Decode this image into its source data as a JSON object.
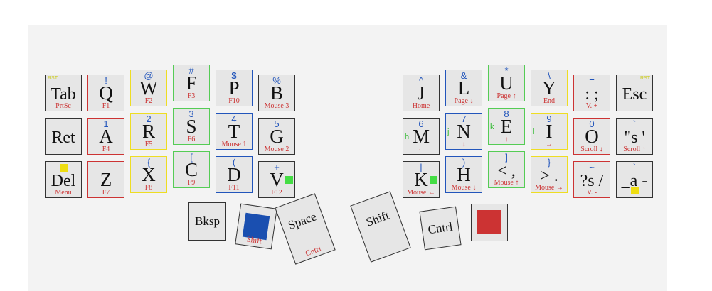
{
  "keys": [
    {
      "id": "tab",
      "main": "Tab",
      "top": "",
      "sub": "PrtSc",
      "corner": "RST",
      "cornerSide": "left",
      "color": "black"
    },
    {
      "id": "q",
      "main": "Q",
      "top": "!",
      "sub": "F1",
      "color": "red"
    },
    {
      "id": "w",
      "main": "W",
      "top": "@",
      "sub": "F2",
      "color": "yellow"
    },
    {
      "id": "f",
      "main": "F",
      "top": "#",
      "sub": "F3",
      "color": "green"
    },
    {
      "id": "p",
      "main": "P",
      "top": "$",
      "sub": "F10",
      "color": "blue"
    },
    {
      "id": "b",
      "main": "B",
      "top": "%",
      "sub": "Mouse 3",
      "color": "black"
    },
    {
      "id": "ret",
      "main": "Ret",
      "top": "",
      "sub": "",
      "color": "black"
    },
    {
      "id": "a",
      "main": "A",
      "top": "1",
      "sub": "F4",
      "color": "red"
    },
    {
      "id": "r",
      "main": "R",
      "top": "2",
      "sub": "F5",
      "color": "yellow"
    },
    {
      "id": "s",
      "main": "S",
      "top": "3",
      "sub": "F6",
      "color": "green"
    },
    {
      "id": "t",
      "main": "T",
      "top": "4",
      "sub": "Mouse 1",
      "color": "blue"
    },
    {
      "id": "g",
      "main": "G",
      "top": "5",
      "sub": "Mouse 2",
      "color": "black"
    },
    {
      "id": "del",
      "main": "Del",
      "top": "",
      "sub": "Menu",
      "color": "black",
      "square": "#eedd11"
    },
    {
      "id": "z",
      "main": "Z",
      "top": "",
      "sub": "F7",
      "color": "red"
    },
    {
      "id": "x",
      "main": "X",
      "top": "{",
      "sub": "F8",
      "color": "yellow"
    },
    {
      "id": "c",
      "main": "C",
      "top": "[",
      "sub": "F9",
      "color": "green"
    },
    {
      "id": "d",
      "main": "D",
      "top": "(",
      "sub": "F11",
      "color": "blue"
    },
    {
      "id": "v",
      "main": "V",
      "top": "+",
      "sub": "F12",
      "color": "black",
      "square": "#44dd44"
    },
    {
      "id": "j",
      "main": "J",
      "top": "^",
      "sub": "Home",
      "color": "black"
    },
    {
      "id": "l",
      "main": "L",
      "top": "&",
      "sub": "Page ↓",
      "color": "blue"
    },
    {
      "id": "u",
      "main": "U",
      "top": "*",
      "sub": "Page ↑",
      "color": "green"
    },
    {
      "id": "y",
      "main": "Y",
      "top": "\\",
      "sub": "End",
      "color": "yellow"
    },
    {
      "id": "semi",
      "main": ": ;",
      "top": "=",
      "sub": "V. +",
      "color": "red"
    },
    {
      "id": "esc",
      "main": "Esc",
      "top": "",
      "sub": "",
      "corner": "RST",
      "cornerSide": "right",
      "color": "black"
    },
    {
      "id": "m",
      "main": "M",
      "top": "6",
      "sub": "←",
      "left": "h",
      "color": "black"
    },
    {
      "id": "n",
      "main": "N",
      "top": "7",
      "sub": "↓",
      "left": "j",
      "color": "blue"
    },
    {
      "id": "e",
      "main": "E",
      "top": "8",
      "sub": "↑",
      "left": "k",
      "color": "green"
    },
    {
      "id": "i",
      "main": "I",
      "top": "9",
      "sub": "→",
      "left": "l",
      "color": "yellow"
    },
    {
      "id": "o",
      "main": "O",
      "top": "0",
      "sub": "Scroll ↓",
      "color": "red"
    },
    {
      "id": "quote",
      "main": "\"s '",
      "top": "`",
      "sub": "Scroll ↑",
      "color": "black"
    },
    {
      "id": "k",
      "main": "K",
      "top": "|",
      "sub": "Mouse ←",
      "color": "black",
      "square": "#44dd44"
    },
    {
      "id": "h",
      "main": "H",
      "top": ")",
      "sub": "Mouse ↓",
      "color": "blue"
    },
    {
      "id": "comma",
      "main": "< ,",
      "top": "]",
      "sub": "Mouse ↑",
      "color": "green"
    },
    {
      "id": "period",
      "main": "> .",
      "top": "}",
      "sub": "Mouse →",
      "color": "yellow"
    },
    {
      "id": "slash",
      "main": "?s /",
      "top": "~",
      "sub": "V. -",
      "color": "red"
    },
    {
      "id": "minus",
      "main": "_a -",
      "top": "`",
      "sub": "",
      "color": "black",
      "square": "#eedd11"
    }
  ],
  "thumbs": [
    {
      "id": "bksp",
      "label": "Bksp",
      "sub": ""
    },
    {
      "id": "blue",
      "label": "",
      "sub": "Shift",
      "square": "#1a4fb0"
    },
    {
      "id": "space",
      "label": "Space",
      "sub": "Cntrl"
    },
    {
      "id": "shift",
      "label": "Shift",
      "sub": ""
    },
    {
      "id": "cntrl",
      "label": "Cntrl",
      "sub": ""
    },
    {
      "id": "red",
      "label": "",
      "sub": "",
      "square": "#cc3333"
    }
  ]
}
